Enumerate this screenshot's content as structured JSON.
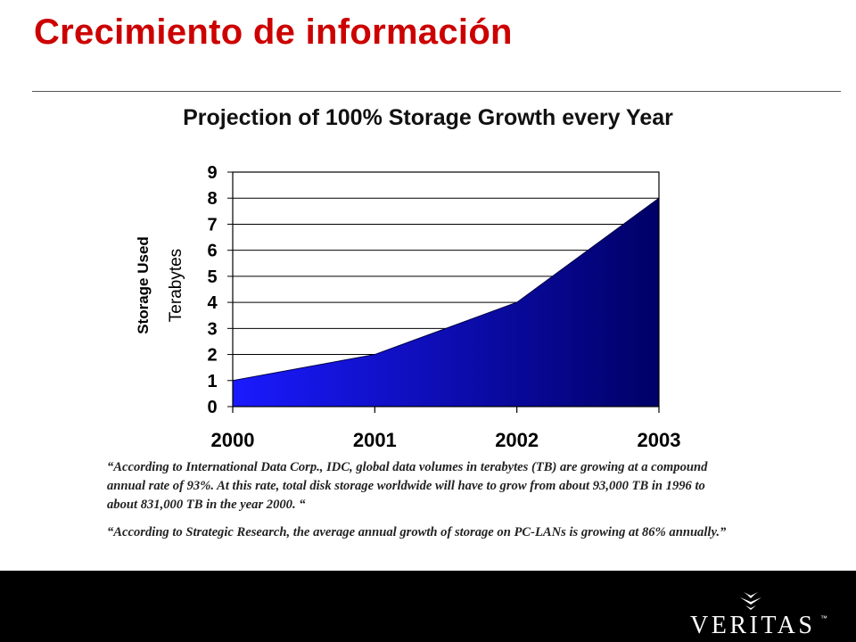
{
  "slide": {
    "title": "Crecimiento de información"
  },
  "chart_data": {
    "type": "area",
    "title": "Projection of 100% Storage Growth every Year",
    "ylabel_line1": "Storage Used",
    "ylabel_line2": "Terabytes",
    "x": [
      "2000",
      "2001",
      "2002",
      "2003"
    ],
    "series": [
      {
        "values": [
          1,
          2,
          4,
          8
        ]
      }
    ],
    "ylim": [
      0,
      9
    ],
    "yticks": [
      0,
      1,
      2,
      3,
      4,
      5,
      6,
      7,
      8,
      9
    ],
    "grid": true,
    "colors": {
      "fill_light": "#1a1aff",
      "fill_dark": "#000066",
      "grid": "#000000"
    }
  },
  "quotes": [
    "“According to International Data Corp., IDC, global data volumes in terabytes (TB) are growing at a compound annual rate of 93%.  At this rate, total disk storage worldwide will have to grow from about 93,000 TB in 1996 to about 831,000 TB in the year 2000. “",
    "“According to Strategic Research, the average annual growth of storage on PC-LANs is growing at 86% annually.”"
  ],
  "footer": {
    "logo_text": "VERITAS",
    "trademark": "™",
    "background": "#000000"
  }
}
